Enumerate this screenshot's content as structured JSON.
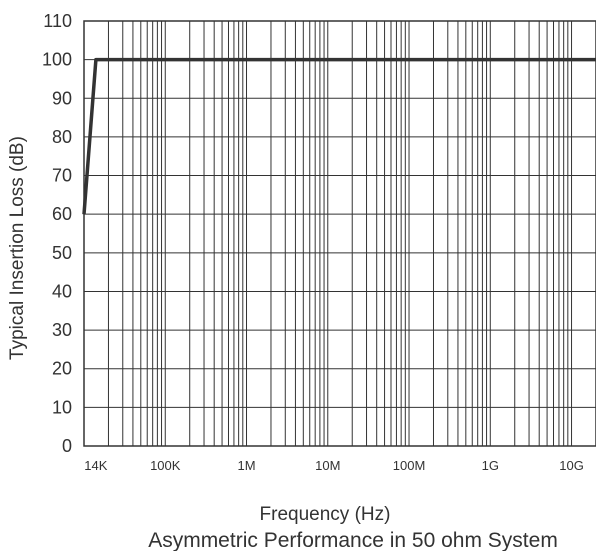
{
  "chart_data": {
    "type": "line",
    "x_scale": "log",
    "xlabel": "Frequency (Hz)",
    "ylabel": "Typical Insertion Loss (dB)",
    "caption": "Asymmetric Performance in 50 ohm System",
    "xlim": [
      10000,
      20000000000
    ],
    "ylim": [
      0,
      110
    ],
    "grid": true,
    "y_ticks": [
      0,
      10,
      20,
      30,
      40,
      50,
      60,
      70,
      80,
      90,
      100,
      110
    ],
    "x_ticks": [
      {
        "value": 14000,
        "label": "14K"
      },
      {
        "value": 100000,
        "label": "100K"
      },
      {
        "value": 1000000,
        "label": "1M"
      },
      {
        "value": 10000000,
        "label": "10M"
      },
      {
        "value": 100000000,
        "label": "100M"
      },
      {
        "value": 1000000000,
        "label": "1G"
      },
      {
        "value": 10000000000,
        "label": "10G"
      }
    ],
    "series": [
      {
        "color": "#333333",
        "x": [
          10000,
          14000,
          20000000000
        ],
        "y": [
          60,
          100,
          100
        ]
      }
    ]
  }
}
